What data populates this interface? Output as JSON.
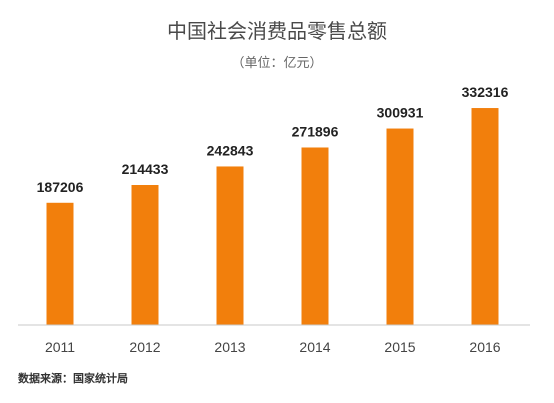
{
  "chart_data": {
    "type": "bar",
    "title": "中国社会消费品零售总额",
    "subtitle": "（单位：亿元）",
    "categories": [
      "2011",
      "2012",
      "2013",
      "2014",
      "2015",
      "2016"
    ],
    "values": [
      187206,
      214433,
      242843,
      271896,
      300931,
      332316
    ],
    "xlabel": "",
    "ylabel": "",
    "ylim": [
      0,
      350000
    ],
    "grid": false,
    "legend": "none",
    "colors": {
      "bar": "#F27F0C",
      "axis": "#C8C8C8"
    }
  },
  "source": "数据来源：国家统计局"
}
